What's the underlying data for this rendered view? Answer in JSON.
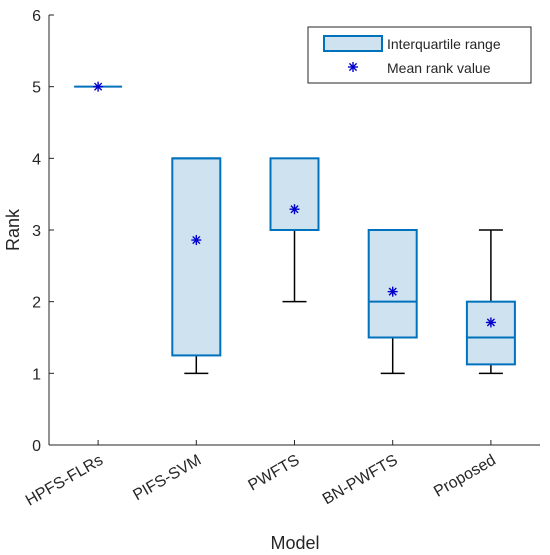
{
  "chart_data": {
    "type": "box",
    "xlabel": "Model",
    "ylabel": "Rank",
    "ylim": [
      0,
      6
    ],
    "yticks": [
      0,
      1,
      2,
      3,
      4,
      5,
      6
    ],
    "grid": false,
    "legend_position": "top-right",
    "legend": {
      "iqr_label": "Interquartile range",
      "mean_label": "Mean rank value"
    },
    "categories": [
      "HPFS-FLRs",
      "PIFS-SVM",
      "PWFTS",
      "BN-PWFTS",
      "Proposed"
    ],
    "boxes": [
      {
        "whisker_low": 5,
        "q1": 5,
        "median": 5,
        "q3": 5,
        "whisker_high": 5,
        "mean": 5.0
      },
      {
        "whisker_low": 1,
        "q1": 1.25,
        "median": 4,
        "q3": 4,
        "whisker_high": 4,
        "mean": 2.86
      },
      {
        "whisker_low": 2,
        "q1": 3,
        "median": 3,
        "q3": 4,
        "whisker_high": 4,
        "mean": 3.29
      },
      {
        "whisker_low": 1,
        "q1": 1.5,
        "median": 2,
        "q3": 3,
        "whisker_high": 3,
        "mean": 2.14
      },
      {
        "whisker_low": 1,
        "q1": 1.125,
        "median": 1.5,
        "q3": 2,
        "whisker_high": 3,
        "mean": 1.71
      }
    ],
    "colors": {
      "box_fill": "#cfe2f0",
      "box_edge": "#0072bd",
      "whisker": "#000000",
      "mean_marker": "#0000cc"
    }
  }
}
